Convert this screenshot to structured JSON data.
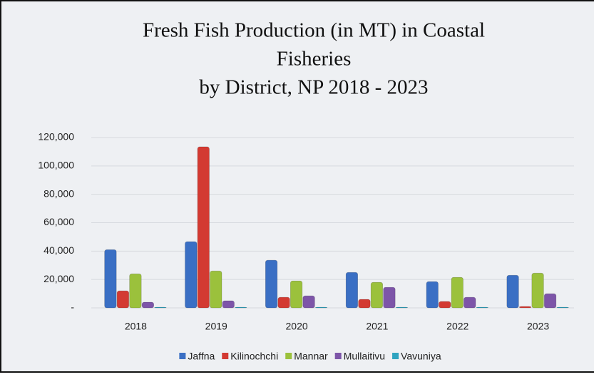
{
  "chart_data": {
    "type": "bar",
    "title": [
      "Fresh Fish Production (in MT) in Coastal",
      "Fisheries",
      "by District, NP 2018 - 2023"
    ],
    "categories": [
      "2018",
      "2019",
      "2020",
      "2021",
      "2022",
      "2023"
    ],
    "series": [
      {
        "name": "Jaffna",
        "color": "#3a6fc4",
        "values": [
          41000,
          46700,
          33600,
          25000,
          18500,
          23000
        ]
      },
      {
        "name": "Kilinochchi",
        "color": "#d33a32",
        "values": [
          12000,
          113500,
          7500,
          6000,
          4500,
          1000
        ]
      },
      {
        "name": "Mannar",
        "color": "#9bc13c",
        "values": [
          24000,
          26000,
          19000,
          18000,
          21500,
          24500
        ]
      },
      {
        "name": "Mullaitivu",
        "color": "#7d55a8",
        "values": [
          4000,
          5000,
          8500,
          14500,
          7500,
          10000
        ]
      },
      {
        "name": "Vavuniya",
        "color": "#2fa4c0",
        "values": [
          500,
          500,
          500,
          500,
          500,
          500
        ]
      }
    ],
    "ylim": [
      0,
      120000
    ],
    "yticks": [
      {
        "value": 0,
        "label": "-"
      },
      {
        "value": 20000,
        "label": "20,000"
      },
      {
        "value": 40000,
        "label": "40,000"
      },
      {
        "value": 60000,
        "label": "60,000"
      },
      {
        "value": 80000,
        "label": "80,000"
      },
      {
        "value": 100000,
        "label": "100,000"
      },
      {
        "value": 120000,
        "label": "120,000"
      }
    ],
    "grid": true,
    "legend": "bottom"
  }
}
